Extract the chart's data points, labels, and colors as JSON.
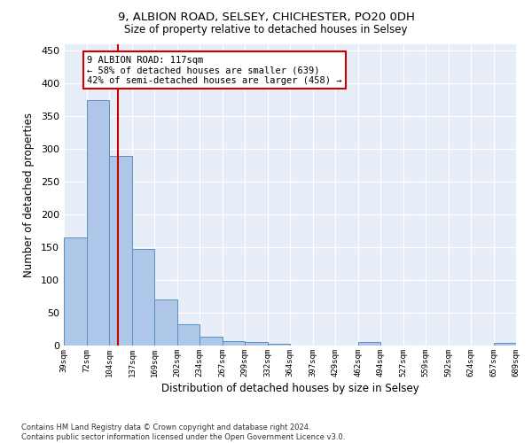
{
  "title1": "9, ALBION ROAD, SELSEY, CHICHESTER, PO20 0DH",
  "title2": "Size of property relative to detached houses in Selsey",
  "xlabel": "Distribution of detached houses by size in Selsey",
  "ylabel": "Number of detached properties",
  "bar_edges": [
    39,
    72,
    104,
    137,
    169,
    202,
    234,
    267,
    299,
    332,
    364,
    397,
    429,
    462,
    494,
    527,
    559,
    592,
    624,
    657,
    689
  ],
  "bar_heights": [
    165,
    375,
    290,
    148,
    70,
    33,
    14,
    7,
    6,
    3,
    0,
    0,
    0,
    5,
    0,
    0,
    0,
    0,
    0,
    4
  ],
  "bar_color": "#aec6e8",
  "bar_edge_color": "#5a8fc0",
  "property_size": 117,
  "red_line_color": "#cc0000",
  "annotation_text": "9 ALBION ROAD: 117sqm\n← 58% of detached houses are smaller (639)\n42% of semi-detached houses are larger (458) →",
  "annotation_box_color": "#ffffff",
  "annotation_box_edge": "#cc0000",
  "bg_color": "#e8eef8",
  "grid_color": "#ffffff",
  "ylim": [
    0,
    460
  ],
  "footer": "Contains HM Land Registry data © Crown copyright and database right 2024.\nContains public sector information licensed under the Open Government Licence v3.0.",
  "tick_labels": [
    "39sqm",
    "72sqm",
    "104sqm",
    "137sqm",
    "169sqm",
    "202sqm",
    "234sqm",
    "267sqm",
    "299sqm",
    "332sqm",
    "364sqm",
    "397sqm",
    "429sqm",
    "462sqm",
    "494sqm",
    "527sqm",
    "559sqm",
    "592sqm",
    "624sqm",
    "657sqm",
    "689sqm"
  ],
  "yticks": [
    0,
    50,
    100,
    150,
    200,
    250,
    300,
    350,
    400,
    450
  ]
}
